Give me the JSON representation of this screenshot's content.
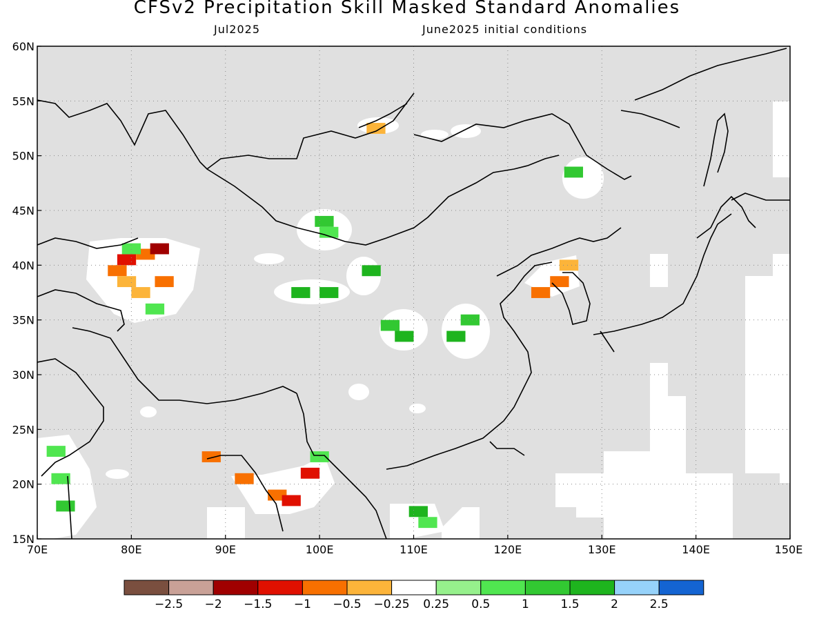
{
  "title": "CFSv2 Precipitation Skill Masked Standard Anomalies",
  "subtitle_left": "Jul2025",
  "subtitle_right": "June2025 initial conditions",
  "map": {
    "lon_range": [
      70,
      150
    ],
    "lat_range": [
      15,
      60
    ],
    "lon_ticks": [
      70,
      80,
      90,
      100,
      110,
      120,
      130,
      140,
      150
    ],
    "lat_ticks": [
      15,
      20,
      25,
      30,
      35,
      40,
      45,
      50,
      55,
      60
    ],
    "lon_labels": [
      "70E",
      "80E",
      "90E",
      "100E",
      "110E",
      "120E",
      "130E",
      "140E",
      "150E"
    ],
    "lat_labels": [
      "15N",
      "20N",
      "25N",
      "30N",
      "35N",
      "40N",
      "45N",
      "50N",
      "55N",
      "60N"
    ],
    "mask_color": "#e0e0e0",
    "grid": true
  },
  "colorbar": {
    "colors": [
      "#7a4f3f",
      "#c9a197",
      "#a00000",
      "#e01000",
      "#f87000",
      "#fcb43a",
      "#ffffff",
      "#96f08c",
      "#50e650",
      "#32c832",
      "#1eb41e",
      "#96d2fa",
      "#1464d2"
    ],
    "labels": [
      "-2.5",
      "-2",
      "-1.5",
      "-1",
      "-0.5",
      "-0.25",
      "0.25",
      "0.5",
      "1",
      "1.5",
      "2",
      "2.5"
    ]
  },
  "anomalies": [
    {
      "lon": 79.5,
      "lat": 40.5,
      "v": -1.5
    },
    {
      "lon": 81.5,
      "lat": 41,
      "v": -1
    },
    {
      "lon": 83,
      "lat": 41.5,
      "v": -2
    },
    {
      "lon": 78.5,
      "lat": 39.5,
      "v": -1
    },
    {
      "lon": 79.5,
      "lat": 38.5,
      "v": -0.5
    },
    {
      "lon": 81,
      "lat": 37.5,
      "v": -0.5
    },
    {
      "lon": 83.5,
      "lat": 38.5,
      "v": -1
    },
    {
      "lon": 80,
      "lat": 41.5,
      "v": 0.5
    },
    {
      "lon": 82.5,
      "lat": 36,
      "v": 0.5
    },
    {
      "lon": 100.5,
      "lat": 44,
      "v": 1
    },
    {
      "lon": 101,
      "lat": 43,
      "v": 0.5
    },
    {
      "lon": 105.5,
      "lat": 39.5,
      "v": 1.5
    },
    {
      "lon": 98,
      "lat": 37.5,
      "v": 1.5
    },
    {
      "lon": 101,
      "lat": 37.5,
      "v": 1.5
    },
    {
      "lon": 107.5,
      "lat": 34.5,
      "v": 1
    },
    {
      "lon": 109,
      "lat": 33.5,
      "v": 1.5
    },
    {
      "lon": 116,
      "lat": 35,
      "v": 1
    },
    {
      "lon": 114.5,
      "lat": 33.5,
      "v": 1.5
    },
    {
      "lon": 125.5,
      "lat": 38.5,
      "v": -1
    },
    {
      "lon": 126.5,
      "lat": 40,
      "v": -0.5
    },
    {
      "lon": 123.5,
      "lat": 37.5,
      "v": -1
    },
    {
      "lon": 127,
      "lat": 48.5,
      "v": 1
    },
    {
      "lon": 106,
      "lat": 52.5,
      "v": -0.5
    },
    {
      "lon": 72.5,
      "lat": 20.5,
      "v": 0.5
    },
    {
      "lon": 73,
      "lat": 18,
      "v": 1
    },
    {
      "lon": 72,
      "lat": 23,
      "v": 0.5
    },
    {
      "lon": 92,
      "lat": 20.5,
      "v": -1
    },
    {
      "lon": 95.5,
      "lat": 19,
      "v": -1
    },
    {
      "lon": 97,
      "lat": 18.5,
      "v": -1.5
    },
    {
      "lon": 88.5,
      "lat": 22.5,
      "v": -1
    },
    {
      "lon": 99,
      "lat": 21,
      "v": -1.5
    },
    {
      "lon": 100,
      "lat": 22.5,
      "v": 0.5
    },
    {
      "lon": 110.5,
      "lat": 17.5,
      "v": 1.5
    },
    {
      "lon": 111.5,
      "lat": 16.5,
      "v": 0.5
    }
  ]
}
